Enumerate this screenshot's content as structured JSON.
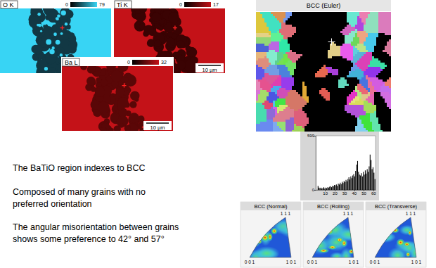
{
  "eds_maps": [
    {
      "element": "O K",
      "scale_min": 0,
      "scale_max": 79,
      "color": "#38d4f4"
    },
    {
      "element": "Ti K",
      "scale_min": 0,
      "scale_max": 17,
      "color": "#c41218",
      "scale_bar": "10 µm"
    },
    {
      "element": "Ba L",
      "scale_min": 0,
      "scale_max": 32,
      "color": "#c41218",
      "scale_bar": "10 µm"
    }
  ],
  "text": [
    [
      "The BaTiO region indexes to BCC"
    ],
    [
      "Composed of many grains with no",
      "preferred orientation"
    ],
    [
      "The angular misorientation between grains",
      "shows some preference to 42° and 57°"
    ]
  ],
  "ebsd_map": {
    "title": "BCC (Euler)"
  },
  "chart_data": {
    "type": "histogram",
    "bins": [
      2,
      3,
      4,
      5,
      6,
      7,
      8,
      9,
      10,
      11,
      12,
      13,
      14,
      15,
      16,
      17,
      18,
      19,
      20,
      21,
      22,
      23,
      24,
      25,
      26,
      27,
      28,
      29,
      30,
      31,
      32,
      33,
      34,
      35,
      36,
      37,
      38,
      39,
      40,
      41,
      42,
      43,
      44,
      45,
      46,
      47,
      48,
      49,
      50,
      51,
      52,
      53,
      54,
      55,
      56,
      57,
      58,
      59,
      60,
      61,
      62
    ],
    "values": [
      45,
      25,
      20,
      25,
      15,
      20,
      30,
      15,
      25,
      20,
      30,
      25,
      35,
      40,
      30,
      45,
      40,
      55,
      50,
      60,
      45,
      70,
      60,
      80,
      65,
      90,
      75,
      100,
      85,
      110,
      95,
      120,
      140,
      115,
      150,
      130,
      160,
      175,
      150,
      210,
      280,
      320,
      200,
      170,
      160,
      185,
      150,
      200,
      170,
      215,
      180,
      230,
      200,
      260,
      390,
      330,
      230,
      250,
      190,
      120
    ],
    "color": "#000000",
    "xlim": [
      0,
      62
    ],
    "xticks": [
      10,
      20,
      30,
      40,
      50,
      60
    ],
    "ylim": [
      0,
      599
    ],
    "yticks": [
      0,
      599
    ]
  },
  "pole_figures": [
    {
      "title": "BCC (Normal)",
      "corners": [
        "1 1 1",
        "0 0 1",
        "1 0 1"
      ]
    },
    {
      "title": "BCC (Rolling)",
      "corners": [
        "1 1 1",
        "0 0 1",
        "1 0 1"
      ]
    },
    {
      "title": "BCC (Transverse)",
      "corners": [
        "1 1 1",
        "0 0 1",
        "1 0 1"
      ]
    }
  ]
}
